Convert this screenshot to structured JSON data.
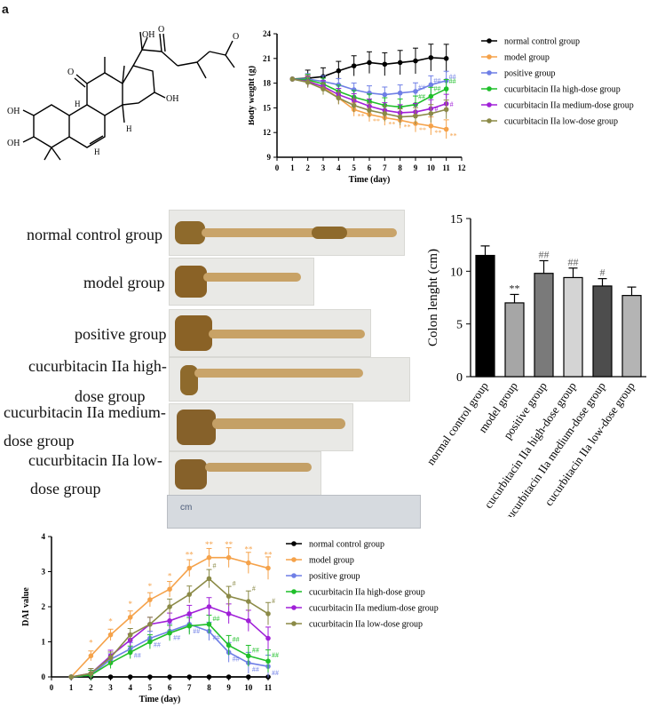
{
  "panel_labels": {
    "a": "a"
  },
  "groups": {
    "g0": "normal control group",
    "g1": "model group",
    "g2": "positive group",
    "g3": "cucurbitacin IIa high-dose group",
    "g4": "cucurbitacin IIa medium-dose group",
    "g5": "cucurbitacin IIa low-dose group"
  },
  "colors": {
    "g0": "#000000",
    "g1": "#f5a24a",
    "g2": "#6f7fe6",
    "g3": "#1fbf2a",
    "g4": "#a020d8",
    "g5": "#8b8a47"
  },
  "structure": {
    "hydroxyls": [
      "OH",
      "OH",
      "OH",
      "OH"
    ],
    "ketones": [
      "O",
      "O",
      "O"
    ],
    "ring_h": [
      "H",
      "H",
      "H"
    ]
  },
  "photo_labels": {
    "l0": "normal control group",
    "l1": "model group",
    "l2": "positive group",
    "l3a": "cucurbitacin IIa high-",
    "l3b": "dose group",
    "l4a": "cucurbitacin IIa medium-",
    "l4b": "dose group",
    "l5a": "cucurbitacin IIa low-",
    "l5b": "dose group",
    "ruler_text": "cm"
  },
  "chart_data": [
    {
      "id": "body_weight",
      "type": "line",
      "title": "",
      "xlabel": "Time (day)",
      "ylabel": "Body weight (g)",
      "xlim": [
        0,
        12
      ],
      "ylim": [
        9,
        24
      ],
      "xticks": [
        "0",
        "1",
        "2",
        "3",
        "4",
        "5",
        "6",
        "7",
        "8",
        "9",
        "10",
        "11",
        "12"
      ],
      "yticks": [
        "9",
        "12",
        "15",
        "18",
        "21",
        "24"
      ],
      "x": [
        1,
        2,
        3,
        4,
        5,
        6,
        7,
        8,
        9,
        10,
        11
      ],
      "legend_position": "right",
      "series": [
        {
          "name": "normal control group",
          "values": [
            18.5,
            18.6,
            18.8,
            19.5,
            20.1,
            20.5,
            20.3,
            20.5,
            20.7,
            21.1,
            21.0
          ]
        },
        {
          "name": "model group",
          "values": [
            18.5,
            18.3,
            17.5,
            16.2,
            14.8,
            14.2,
            13.8,
            13.5,
            13.1,
            12.8,
            12.4
          ]
        },
        {
          "name": "positive group",
          "values": [
            18.5,
            18.5,
            18.2,
            17.8,
            17.2,
            16.8,
            16.6,
            16.8,
            17.0,
            17.8,
            18.3
          ]
        },
        {
          "name": "cucurbitacin IIa high-dose group",
          "values": [
            18.5,
            18.4,
            17.9,
            17.0,
            16.3,
            15.8,
            15.3,
            15.1,
            15.4,
            16.4,
            17.3
          ]
        },
        {
          "name": "cucurbitacin IIa medium-dose group",
          "values": [
            18.5,
            18.2,
            17.6,
            16.6,
            15.9,
            15.2,
            14.7,
            14.4,
            14.5,
            14.9,
            15.5
          ]
        },
        {
          "name": "cucurbitacin IIa low-dose group",
          "values": [
            18.5,
            18.1,
            17.3,
            16.2,
            15.3,
            14.7,
            14.3,
            13.9,
            14.0,
            14.3,
            14.8
          ]
        }
      ],
      "annotations": [
        "**",
        "##",
        "#"
      ]
    },
    {
      "id": "colon_length",
      "type": "bar",
      "title": "",
      "xlabel": "",
      "ylabel": "Colon lenght (cm)",
      "ylim": [
        0,
        15
      ],
      "yticks": [
        "0",
        "5",
        "10",
        "15"
      ],
      "categories": [
        "normal control group",
        "model group",
        "positive group",
        "cucurbitacin IIa high-dose group",
        "cucurbitacin IIa medium-dose group",
        "cucurbitacin IIa low-dose group"
      ],
      "values": [
        11.5,
        7.0,
        9.8,
        9.4,
        8.6,
        7.7
      ],
      "errors": [
        0.9,
        0.8,
        1.2,
        0.9,
        0.7,
        0.8
      ],
      "bar_colors": [
        "#000000",
        "#a6a6a6",
        "#7a7a7a",
        "#d4d4d4",
        "#4d4d4d",
        "#b4b4b4"
      ],
      "significance": [
        "",
        "**",
        "##",
        "##",
        "#",
        ""
      ]
    },
    {
      "id": "dai",
      "type": "line",
      "title": "",
      "xlabel": "Time (day)",
      "ylabel": "DAI value",
      "xlim": [
        0,
        11
      ],
      "ylim": [
        0,
        4
      ],
      "xticks": [
        "0",
        "1",
        "2",
        "3",
        "4",
        "5",
        "6",
        "7",
        "8",
        "9",
        "10",
        "11"
      ],
      "yticks": [
        "0",
        "1",
        "2",
        "3",
        "4"
      ],
      "x": [
        1,
        2,
        3,
        4,
        5,
        6,
        7,
        8,
        9,
        10,
        11
      ],
      "legend_position": "right",
      "series": [
        {
          "name": "normal control group",
          "values": [
            0,
            0,
            0,
            0,
            0,
            0,
            0,
            0,
            0,
            0,
            0
          ]
        },
        {
          "name": "model group",
          "values": [
            0,
            0.6,
            1.2,
            1.7,
            2.2,
            2.5,
            3.1,
            3.4,
            3.4,
            3.25,
            3.1
          ]
        },
        {
          "name": "positive group",
          "values": [
            0,
            0.05,
            0.5,
            0.8,
            1.1,
            1.3,
            1.5,
            1.3,
            0.7,
            0.4,
            0.3
          ]
        },
        {
          "name": "cucurbitacin IIa high-dose group",
          "values": [
            0,
            0.05,
            0.4,
            0.7,
            1.0,
            1.25,
            1.45,
            1.5,
            0.9,
            0.6,
            0.45
          ]
        },
        {
          "name": "cucurbitacin IIa medium-dose group",
          "values": [
            0,
            0.1,
            0.6,
            1.05,
            1.5,
            1.6,
            1.8,
            2.0,
            1.8,
            1.6,
            1.1
          ]
        },
        {
          "name": "cucurbitacin IIa low-dose group",
          "values": [
            0,
            0.1,
            0.55,
            1.2,
            1.5,
            2.0,
            2.35,
            2.8,
            2.3,
            2.15,
            1.8
          ]
        }
      ],
      "annotations": [
        "**",
        "*",
        "##",
        "#"
      ]
    }
  ]
}
